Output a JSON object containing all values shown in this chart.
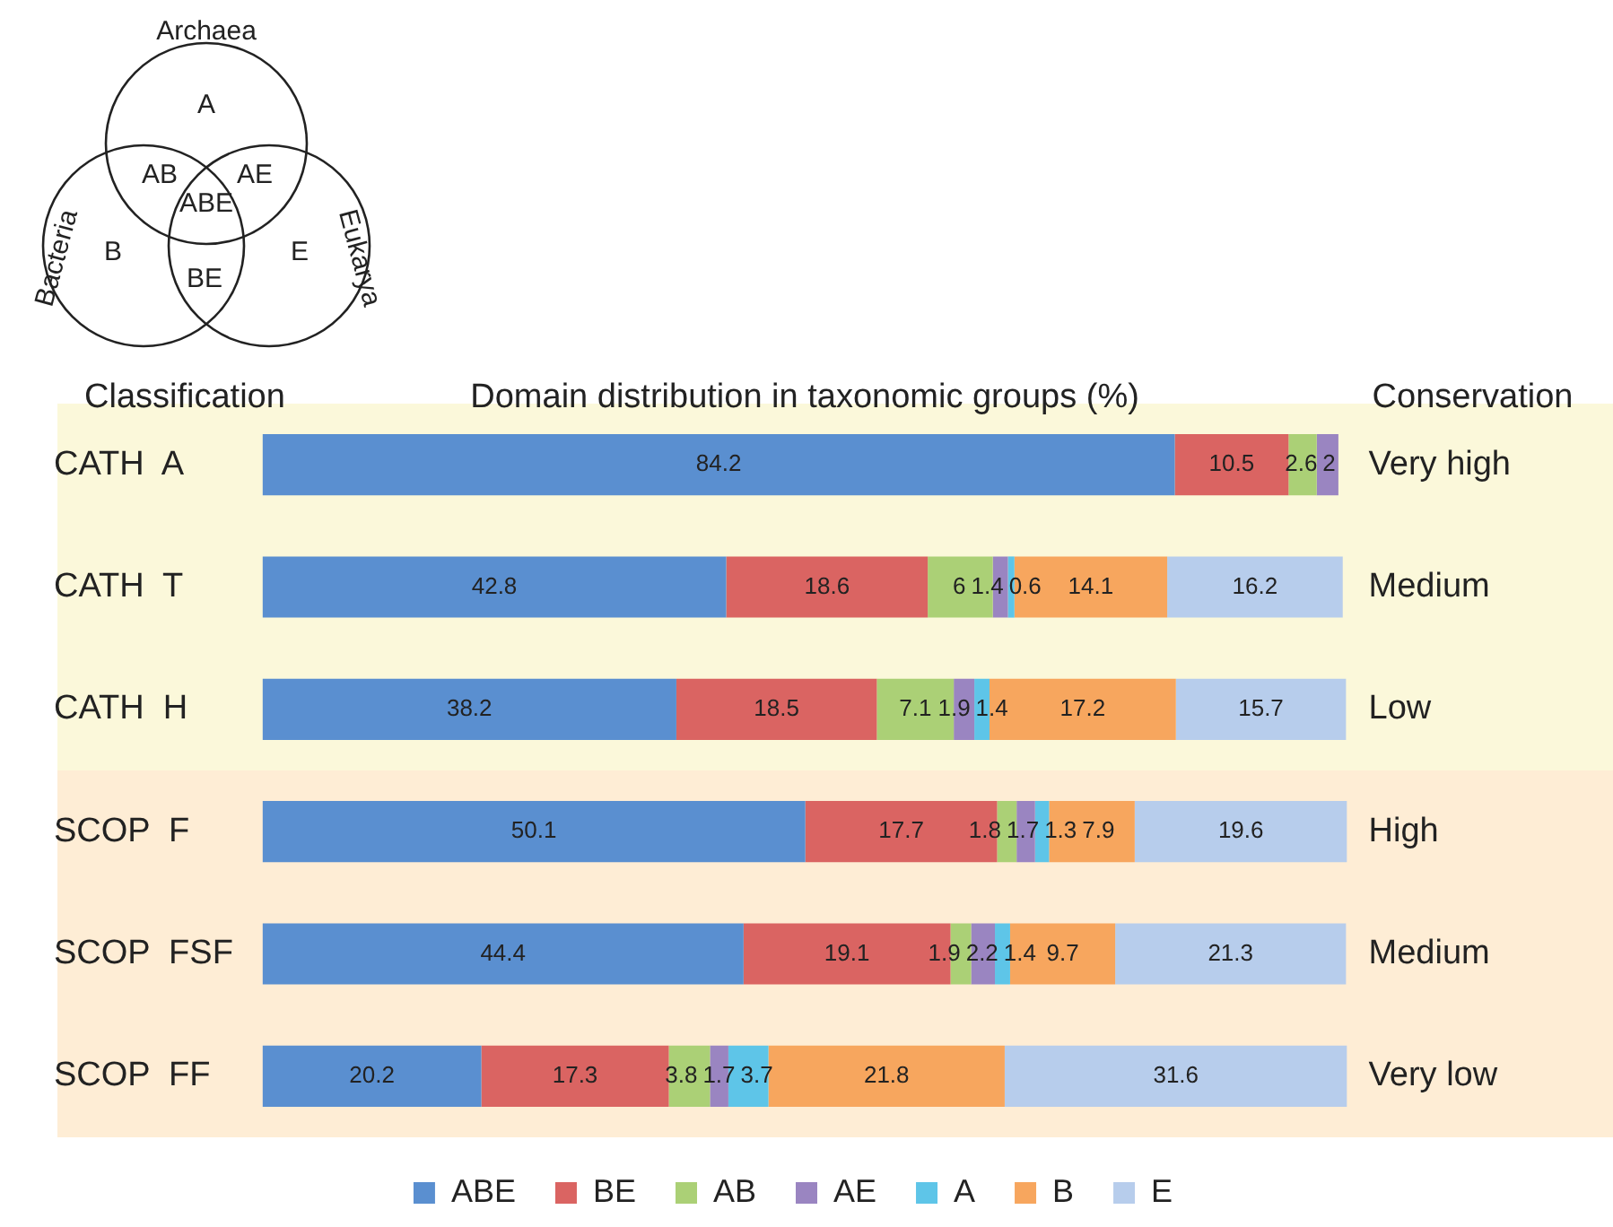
{
  "chart_data": {
    "type": "bar",
    "orientation": "horizontal",
    "stacked": true,
    "data_labels": true,
    "legend": "bottom",
    "grid": false,
    "tick_labels": "y",
    "title": "Domain distribution in taxonomic groups (%)",
    "ylabel": "Classification",
    "y2label": "Conservation",
    "categories": [
      "CATH  A",
      "CATH  T",
      "CATH  H",
      "SCOP  F",
      "SCOP  FSF",
      "SCOP  FF"
    ],
    "y2_categories": [
      "Very high",
      "Medium",
      "Low",
      "High",
      "Medium",
      "Very low"
    ],
    "series": [
      {
        "name": "ABE",
        "color": "#5a8fd0",
        "values": [
          84.2,
          42.8,
          38.2,
          50.1,
          44.4,
          20.2
        ]
      },
      {
        "name": "BE",
        "color": "#da6462",
        "values": [
          10.5,
          18.6,
          18.5,
          17.7,
          19.1,
          17.3
        ]
      },
      {
        "name": "AB",
        "color": "#abd076",
        "values": [
          2.6,
          6,
          7.1,
          1.8,
          1.9,
          3.8
        ]
      },
      {
        "name": "AE",
        "color": "#9a85c1",
        "values": [
          2,
          1.4,
          1.9,
          1.7,
          2.2,
          1.7
        ]
      },
      {
        "name": "A",
        "color": "#5ec5e8",
        "values": [
          null,
          0.6,
          1.4,
          1.3,
          1.4,
          3.7
        ]
      },
      {
        "name": "B",
        "color": "#f7a65e",
        "values": [
          null,
          14.1,
          17.2,
          7.9,
          9.7,
          21.8
        ]
      },
      {
        "name": "E",
        "color": "#b7cdec",
        "values": [
          null,
          16.2,
          15.7,
          19.6,
          21.3,
          31.6
        ]
      }
    ],
    "bands": [
      {
        "axis": "y",
        "from": "CATH  A",
        "to": "CATH  H",
        "color": "#fbf8da"
      },
      {
        "axis": "y",
        "from": "SCOP  F",
        "to": "SCOP  FF",
        "color": "#feedd5"
      }
    ],
    "annotations": [
      "Archaea",
      "Bacteria",
      "Eukarya"
    ]
  }
}
